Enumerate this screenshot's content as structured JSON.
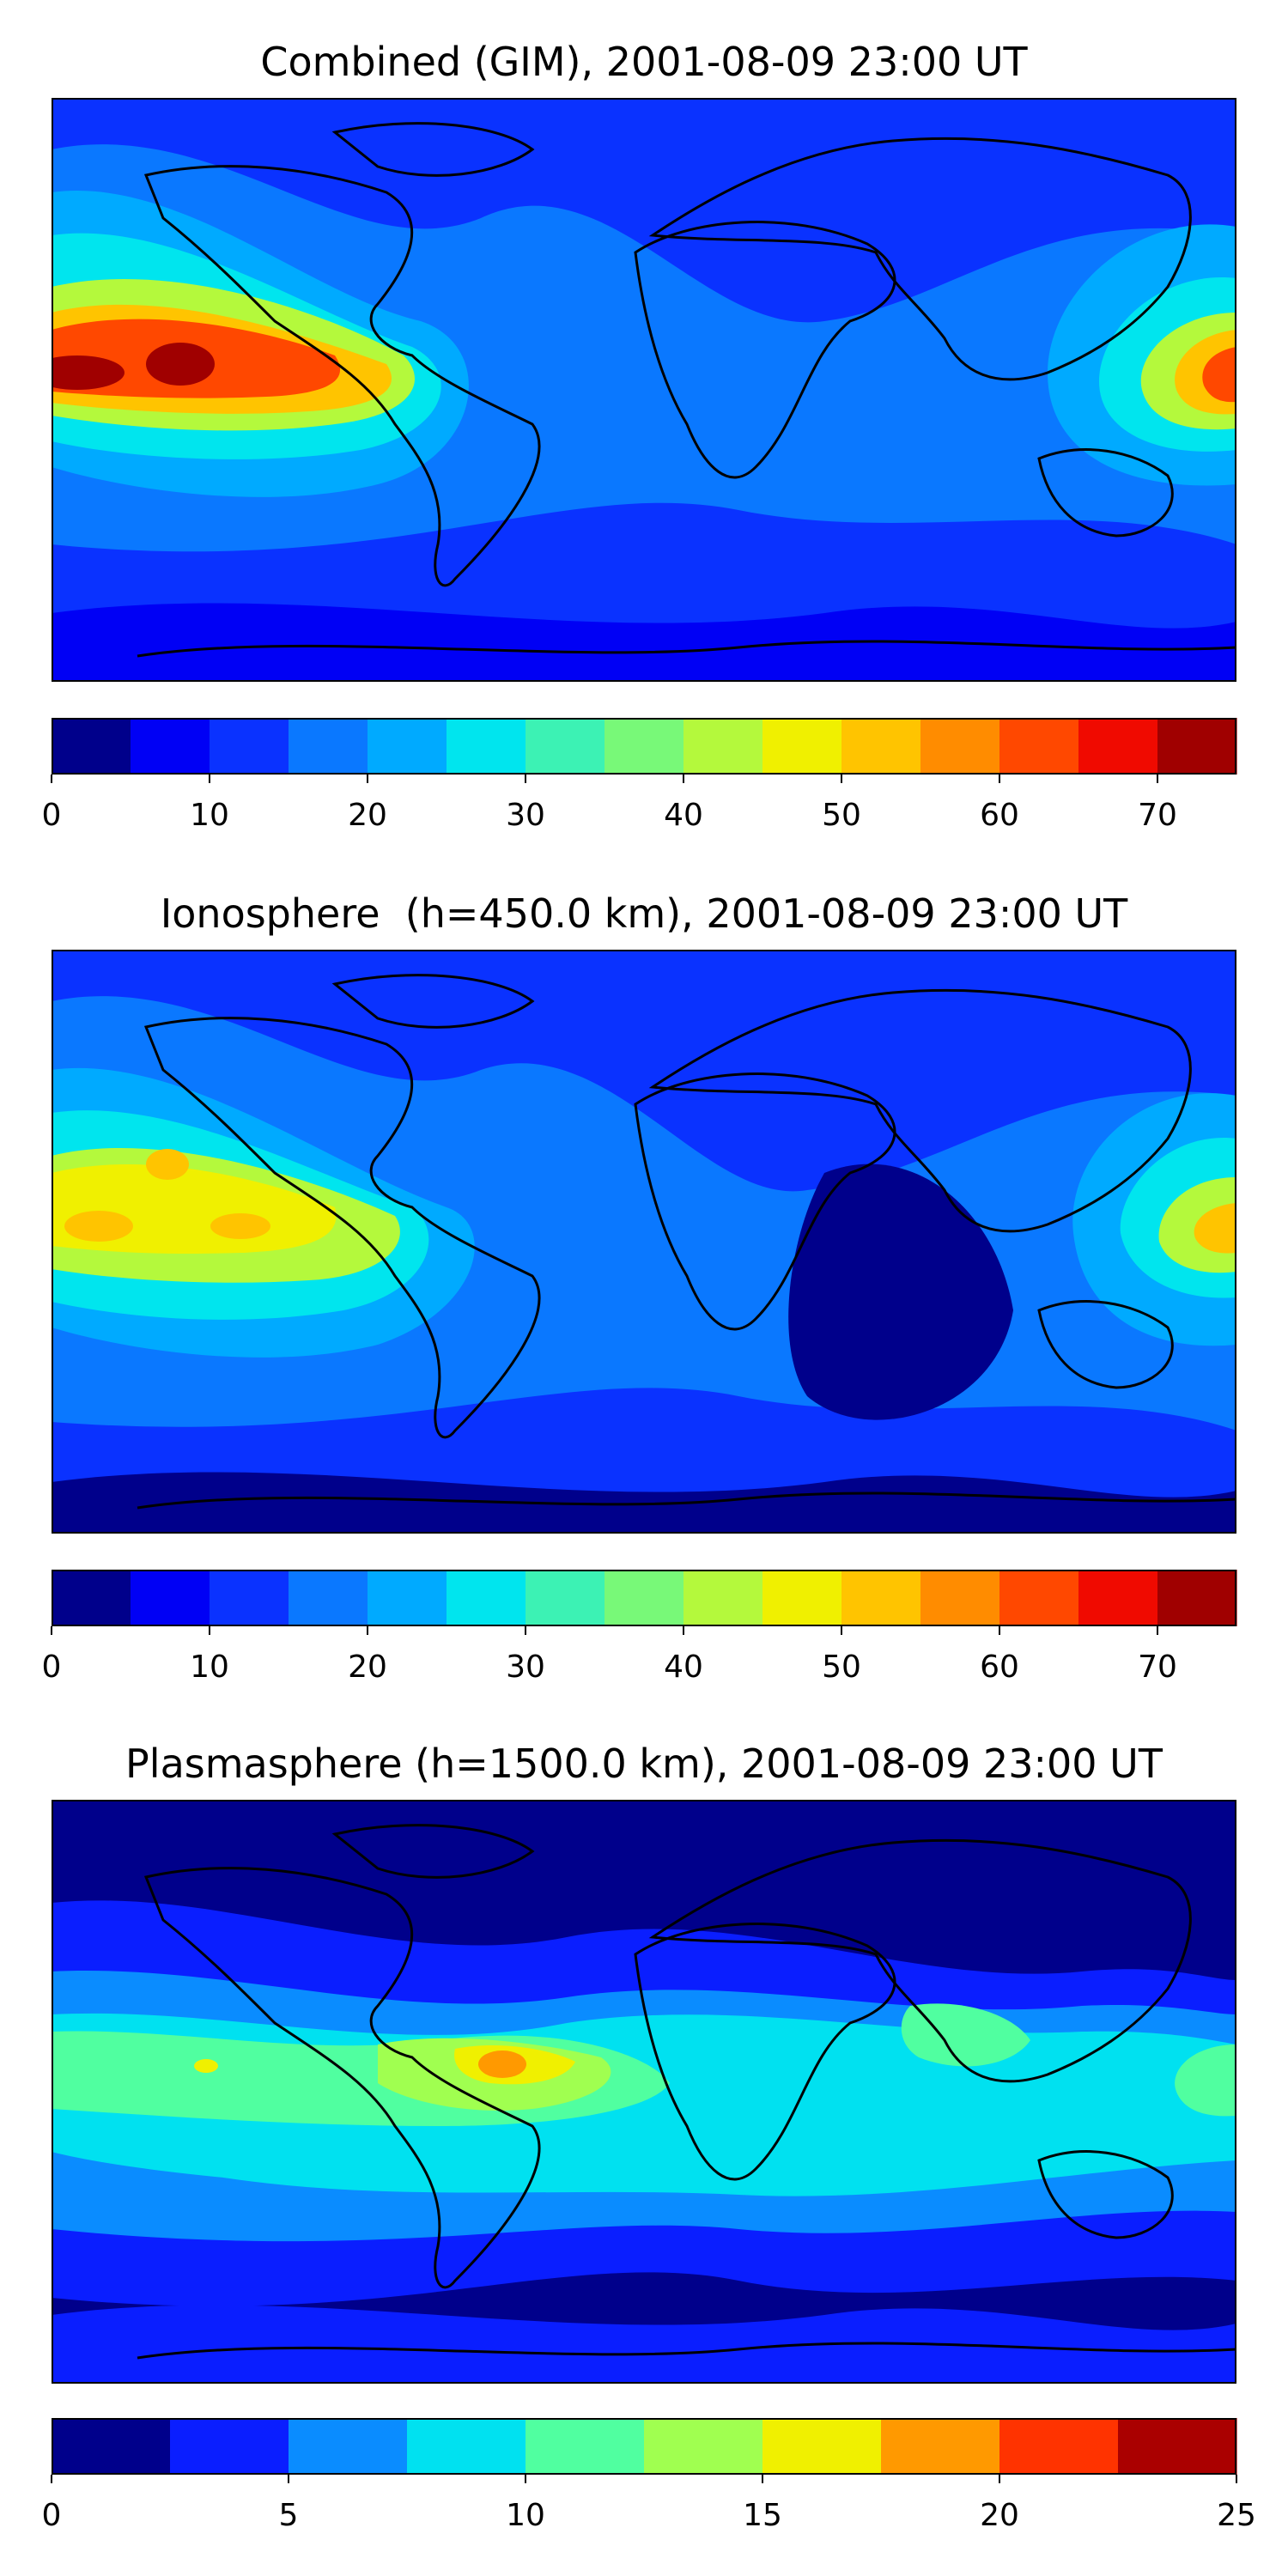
{
  "figure": {
    "panels": [
      {
        "title": "Combined (GIM), 2001-08-09 23:00 UT",
        "colorbar": {
          "min": 0,
          "max": 75,
          "step": 5,
          "ticks": [
            "0",
            "10",
            "20",
            "30",
            "40",
            "50",
            "60",
            "70"
          ],
          "tick_values": [
            0,
            10,
            20,
            30,
            40,
            50,
            60,
            70
          ]
        }
      },
      {
        "title": "Ionosphere  (h=450.0 km), 2001-08-09 23:00 UT",
        "colorbar": {
          "min": 0,
          "max": 75,
          "step": 5,
          "ticks": [
            "0",
            "10",
            "20",
            "30",
            "40",
            "50",
            "60",
            "70"
          ],
          "tick_values": [
            0,
            10,
            20,
            30,
            40,
            50,
            60,
            70
          ]
        }
      },
      {
        "title": "Plasmasphere (h=1500.0 km), 2001-08-09 23:00 UT",
        "colorbar": {
          "min": 0,
          "max": 25,
          "step": 2.5,
          "ticks": [
            "0",
            "5",
            "10",
            "15",
            "20",
            "25"
          ],
          "tick_values": [
            0,
            5,
            10,
            15,
            20,
            25
          ]
        }
      }
    ]
  },
  "palette": {
    "jet15": [
      "#00008b",
      "#0000f5",
      "#0a32ff",
      "#0a78ff",
      "#00aaff",
      "#00e5ee",
      "#3cf2b4",
      "#78f978",
      "#b4f93c",
      "#f0f000",
      "#ffc400",
      "#ff8c00",
      "#ff4800",
      "#f00a00",
      "#a00000"
    ],
    "jet10": [
      "#00008b",
      "#0a1eff",
      "#0a8cff",
      "#00e1f0",
      "#50ffa0",
      "#a0ff50",
      "#f0f000",
      "#ff9900",
      "#ff3300",
      "#aa0000"
    ]
  }
}
